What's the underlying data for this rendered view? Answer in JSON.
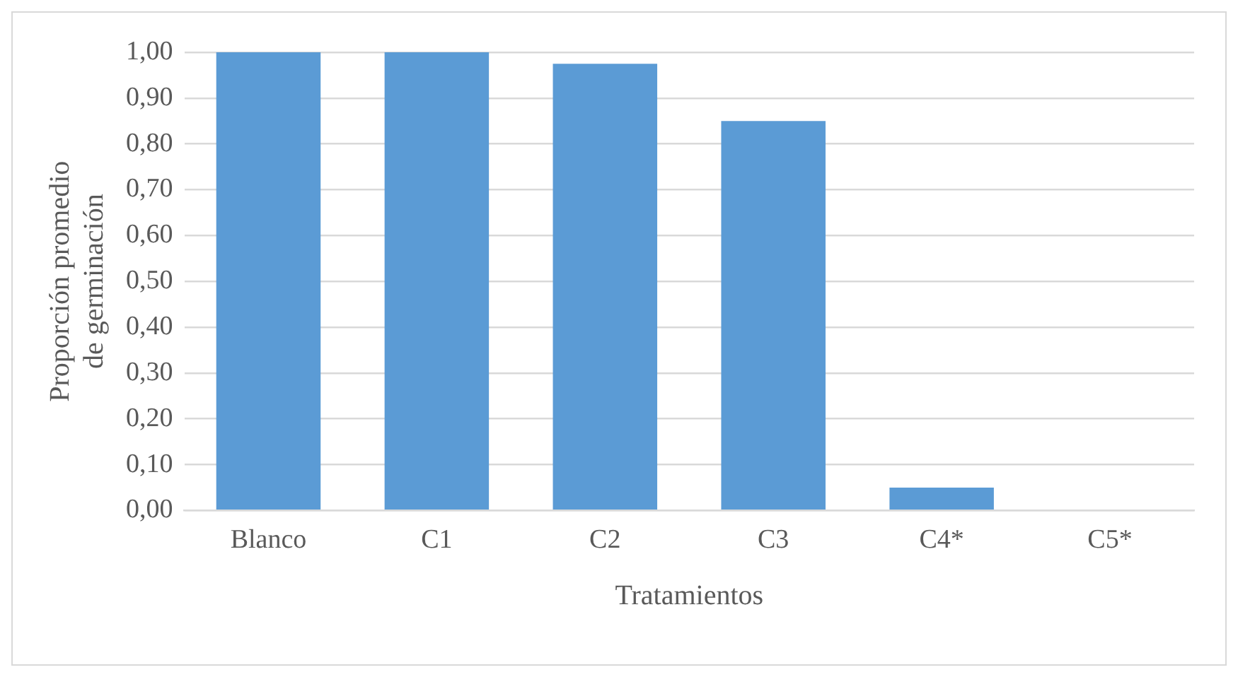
{
  "chart_data": {
    "type": "bar",
    "xlabel": "Tratamientos",
    "ylabel": "Proporción promedio de germinación",
    "categories": [
      "Blanco",
      "C1",
      "C2",
      "C3",
      "C4*",
      "C5*"
    ],
    "values": [
      1,
      1,
      0.975,
      0.85,
      0.05,
      0
    ],
    "color": "#5b9bd5",
    "ylim": [
      0,
      1
    ],
    "yticks": [
      {
        "value": 0,
        "label": "0,00"
      },
      {
        "value": 0.1,
        "label": "0,10"
      },
      {
        "value": 0.2,
        "label": "0,20"
      },
      {
        "value": 0.3,
        "label": "0,30"
      },
      {
        "value": 0.4,
        "label": "0,40"
      },
      {
        "value": 0.5,
        "label": "0,50"
      },
      {
        "value": 0.6,
        "label": "0,60"
      },
      {
        "value": 0.7,
        "label": "0,70"
      },
      {
        "value": 0.8,
        "label": "0,80"
      },
      {
        "value": 0.9,
        "label": "0,90"
      },
      {
        "value": 1,
        "label": "1,00"
      }
    ],
    "grid": "y",
    "legend": false
  }
}
